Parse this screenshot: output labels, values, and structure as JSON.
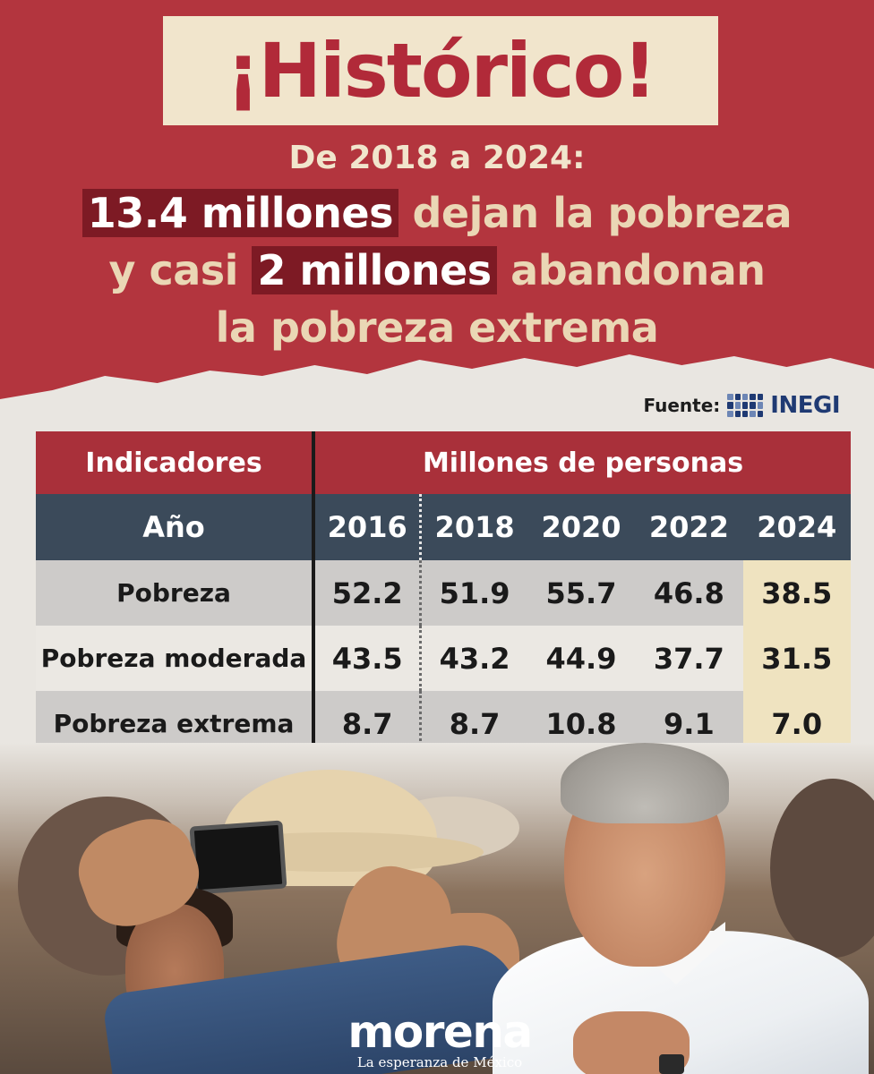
{
  "header": {
    "title": "¡Histórico!",
    "subtitle": "De 2018 a 2024:",
    "headline": {
      "line1_highlight": "13.4 millones",
      "line1_rest": " dejan la pobreza",
      "line2_start": "y casi ",
      "line2_highlight": "2 millones",
      "line2_rest": " abandonan",
      "line3": "la pobreza extrema"
    }
  },
  "source": {
    "label": "Fuente:",
    "organization": "INEGI"
  },
  "table": {
    "indicator_header": "Indicadores",
    "span_header": "Millones de personas",
    "year_header": "Año",
    "years": [
      "2016",
      "2018",
      "2020",
      "2022",
      "2024"
    ],
    "rows": [
      {
        "label": "Pobreza",
        "values": [
          "52.2",
          "51.9",
          "55.7",
          "46.8",
          "38.5"
        ]
      },
      {
        "label": "Pobreza moderada",
        "values": [
          "43.5",
          "43.2",
          "44.9",
          "37.7",
          "31.5"
        ]
      },
      {
        "label": "Pobreza extrema",
        "values": [
          "8.7",
          "8.7",
          "10.8",
          "9.1",
          "7.0"
        ]
      }
    ],
    "highlight_color": "#efe3c0",
    "header_red": "#a9303a",
    "header_slate": "#3b4a5a"
  },
  "brand": {
    "name": "morena",
    "tagline": "La esperanza de México",
    "banner_color": "#b3353e"
  }
}
